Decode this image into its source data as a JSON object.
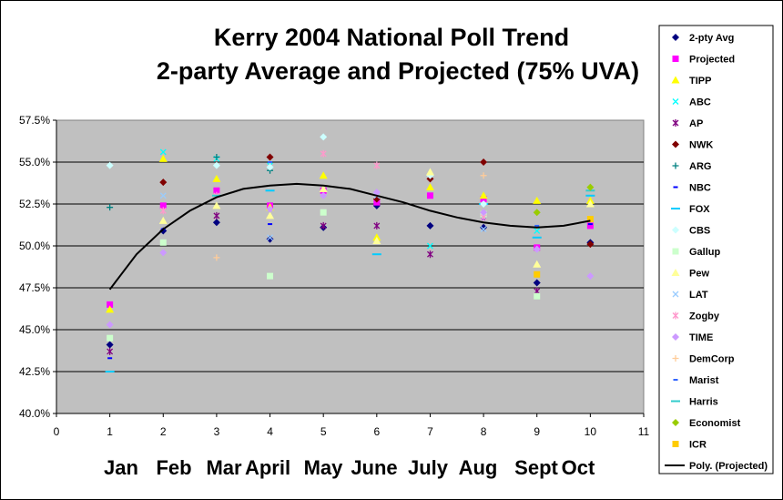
{
  "chart_data": {
    "type": "scatter",
    "title": "Kerry 2004 National Poll Trend",
    "subtitle": "2-party Average and Projected (75% UVA)",
    "xlim": [
      0,
      11
    ],
    "ylim": [
      40.0,
      57.5
    ],
    "x_ticks": [
      "0",
      "1",
      "2",
      "3",
      "4",
      "5",
      "6",
      "7",
      "8",
      "9",
      "10",
      "11"
    ],
    "y_ticks": [
      "40.0%",
      "42.5%",
      "45.0%",
      "47.5%",
      "50.0%",
      "52.5%",
      "55.0%",
      "57.5%"
    ],
    "month_labels": [
      "Jan",
      "Feb",
      "Mar",
      "April",
      "May",
      "June",
      "July",
      "Aug",
      "Sept",
      "Oct"
    ],
    "grid": "horizontal",
    "legend_position": "right",
    "series": [
      {
        "name": "2-pty Avg",
        "color": "#000080",
        "marker": "diamond",
        "points": [
          [
            1,
            44.1
          ],
          [
            2,
            50.9
          ],
          [
            3,
            51.4
          ],
          [
            4,
            50.4
          ],
          [
            5,
            51.1
          ],
          [
            6,
            52.4
          ],
          [
            7,
            51.2
          ],
          [
            8,
            51.1
          ],
          [
            9,
            47.8
          ],
          [
            10,
            50.2
          ]
        ]
      },
      {
        "name": "Projected",
        "color": "#ff00ff",
        "marker": "square",
        "points": [
          [
            1,
            46.5
          ],
          [
            2,
            52.4
          ],
          [
            3,
            53.3
          ],
          [
            4,
            52.4
          ],
          [
            5,
            53.3
          ],
          [
            6,
            52.6
          ],
          [
            7,
            53.0
          ],
          [
            8,
            52.8
          ],
          [
            9,
            49.9
          ],
          [
            10,
            51.2
          ]
        ]
      },
      {
        "name": "TIPP",
        "color": "#ffff00",
        "marker": "triangle",
        "points": [
          [
            1,
            46.2
          ],
          [
            2,
            55.2
          ],
          [
            3,
            54.0
          ],
          [
            4,
            52.3
          ],
          [
            5,
            54.2
          ],
          [
            6,
            50.5
          ],
          [
            7,
            53.5
          ],
          [
            8,
            53.0
          ],
          [
            9,
            52.7
          ],
          [
            10,
            52.7
          ]
        ]
      },
      {
        "name": "ABC",
        "color": "#00ffff",
        "marker": "x",
        "points": [
          [
            2,
            55.6
          ],
          [
            3,
            55.2
          ],
          [
            4,
            54.8
          ],
          [
            7,
            50.0
          ],
          [
            9,
            50.9
          ]
        ]
      },
      {
        "name": "AP",
        "color": "#800080",
        "marker": "star",
        "points": [
          [
            1,
            43.7
          ],
          [
            3,
            51.8
          ],
          [
            5,
            51.2
          ],
          [
            6,
            51.2
          ],
          [
            7,
            49.5
          ],
          [
            9,
            47.3
          ]
        ]
      },
      {
        "name": "NWK",
        "color": "#800000",
        "marker": "diamond",
        "points": [
          [
            2,
            53.8
          ],
          [
            4,
            55.3
          ],
          [
            6,
            52.8
          ],
          [
            7,
            54.0
          ],
          [
            8,
            55.0
          ],
          [
            10,
            50.1
          ]
        ]
      },
      {
        "name": "ARG",
        "color": "#008080",
        "marker": "plus",
        "points": [
          [
            1,
            52.3
          ],
          [
            3,
            55.3
          ],
          [
            4,
            54.5
          ]
        ]
      },
      {
        "name": "NBC",
        "color": "#0000ff",
        "marker": "dash",
        "points": [
          [
            1,
            43.3
          ],
          [
            2,
            51.0
          ],
          [
            4,
            51.3
          ],
          [
            8,
            51.6
          ],
          [
            10,
            51.3
          ]
        ]
      },
      {
        "name": "FOX",
        "color": "#00ccff",
        "marker": "longdash",
        "points": [
          [
            1,
            42.5
          ],
          [
            4,
            53.3
          ],
          [
            6,
            49.5
          ],
          [
            8,
            52.5
          ],
          [
            9,
            50.5
          ],
          [
            10,
            53.0
          ]
        ]
      },
      {
        "name": "CBS",
        "color": "#ccffff",
        "marker": "diamond",
        "points": [
          [
            1,
            54.8
          ],
          [
            3,
            54.8
          ],
          [
            4,
            54.7
          ],
          [
            5,
            56.5
          ],
          [
            7,
            54.2
          ],
          [
            8,
            52.5
          ]
        ]
      },
      {
        "name": "Gallup",
        "color": "#ccffcc",
        "marker": "square",
        "points": [
          [
            1,
            44.5
          ],
          [
            2,
            50.2
          ],
          [
            4,
            48.2
          ],
          [
            5,
            52.0
          ],
          [
            8,
            51.9
          ],
          [
            9,
            47.0
          ]
        ]
      },
      {
        "name": "Pew",
        "color": "#ffff99",
        "marker": "triangle",
        "points": [
          [
            2,
            51.5
          ],
          [
            3,
            52.4
          ],
          [
            4,
            51.8
          ],
          [
            5,
            53.4
          ],
          [
            6,
            50.3
          ],
          [
            7,
            54.4
          ],
          [
            9,
            48.9
          ],
          [
            10,
            52.5
          ]
        ]
      },
      {
        "name": "LAT",
        "color": "#99ccff",
        "marker": "x",
        "points": [
          [
            2,
            53.0
          ],
          [
            4,
            50.5
          ],
          [
            6,
            53.0
          ],
          [
            8,
            51.0
          ]
        ]
      },
      {
        "name": "Zogby",
        "color": "#ff99cc",
        "marker": "star",
        "points": [
          [
            2,
            52.1
          ],
          [
            3,
            53.0
          ],
          [
            5,
            55.5
          ],
          [
            6,
            54.8
          ],
          [
            8,
            51.7
          ]
        ]
      },
      {
        "name": "TIME",
        "color": "#cc99ff",
        "marker": "diamond",
        "points": [
          [
            1,
            45.3
          ],
          [
            2,
            49.6
          ],
          [
            4,
            52.2
          ],
          [
            5,
            53.0
          ],
          [
            6,
            53.2
          ],
          [
            8,
            52.0
          ],
          [
            9,
            49.8
          ],
          [
            10,
            48.2
          ]
        ]
      },
      {
        "name": "DemCorp",
        "color": "#ffcc99",
        "marker": "plus",
        "points": [
          [
            3,
            49.3
          ],
          [
            8,
            54.2
          ]
        ]
      },
      {
        "name": "Marist",
        "color": "#3366ff",
        "marker": "dash",
        "points": [
          [
            4,
            55.0
          ],
          [
            9,
            51.2
          ]
        ]
      },
      {
        "name": "Harris",
        "color": "#33cccc",
        "marker": "longdash",
        "points": [
          [
            3,
            53.0
          ],
          [
            10,
            53.3
          ]
        ]
      },
      {
        "name": "Economist",
        "color": "#99cc00",
        "marker": "diamond",
        "points": [
          [
            9,
            52.0
          ],
          [
            10,
            53.5
          ]
        ]
      },
      {
        "name": "ICR",
        "color": "#ffcc00",
        "marker": "square",
        "points": [
          [
            9,
            48.3
          ],
          [
            10,
            51.6
          ]
        ]
      },
      {
        "name": "Poly. (Projected)",
        "color": "#000000",
        "marker": "line",
        "points": [
          [
            1,
            47.4
          ],
          [
            1.5,
            49.5
          ],
          [
            2,
            51.0
          ],
          [
            2.5,
            52.1
          ],
          [
            3,
            52.9
          ],
          [
            3.5,
            53.4
          ],
          [
            4,
            53.6
          ],
          [
            4.5,
            53.7
          ],
          [
            5,
            53.6
          ],
          [
            5.5,
            53.4
          ],
          [
            6,
            53.0
          ],
          [
            6.5,
            52.6
          ],
          [
            7,
            52.1
          ],
          [
            7.5,
            51.7
          ],
          [
            8,
            51.4
          ],
          [
            8.5,
            51.2
          ],
          [
            9,
            51.1
          ],
          [
            9.5,
            51.2
          ],
          [
            10,
            51.5
          ]
        ]
      }
    ]
  }
}
